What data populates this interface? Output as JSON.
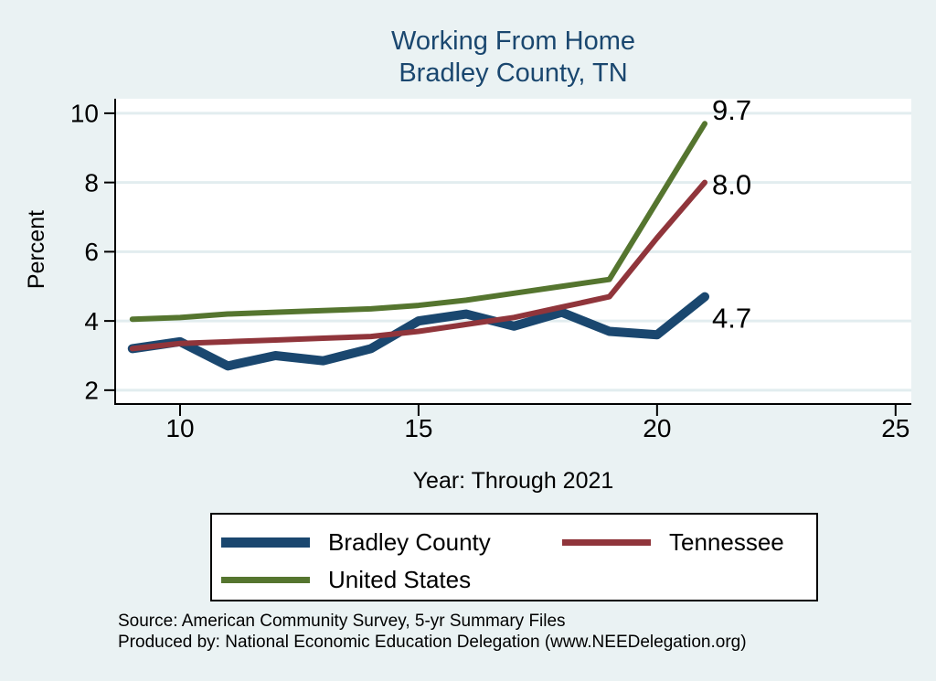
{
  "title": {
    "line1": "Working From Home",
    "line2": "Bradley County, TN"
  },
  "y_axis": {
    "label": "Percent"
  },
  "x_axis": {
    "label": "Year: Through 2021"
  },
  "source": {
    "line1": "Source: American Community Survey, 5-yr Summary Files",
    "line2": "Produced by: National Economic Education Delegation (www.NEEDelegation.org)"
  },
  "colors": {
    "background": "#eaf2f3",
    "plot_background": "#ffffff",
    "gridline": "#e2edef",
    "axis": "#000000",
    "title_text": "#1a476f",
    "tick_text": "#000000",
    "end_label_text": "#000000"
  },
  "chart_data": {
    "type": "line",
    "title": "Working From Home",
    "subtitle": "Bradley County, TN",
    "xlabel": "Year: Through 2021",
    "ylabel": "Percent",
    "x_ticks": [
      10,
      15,
      20,
      25
    ],
    "y_ticks": [
      2,
      4,
      6,
      8,
      10
    ],
    "xlim": [
      8.64,
      25.33
    ],
    "ylim": [
      1.6,
      10.42
    ],
    "grid": "horizontal",
    "legend_position": "bottom",
    "x": [
      9,
      10,
      11,
      12,
      13,
      14,
      15,
      16,
      17,
      18,
      19,
      20,
      21
    ],
    "series": [
      {
        "name": "Bradley County",
        "color": "#1a476f",
        "end_label": "4.7",
        "values": [
          3.2,
          3.4,
          2.7,
          3.0,
          2.85,
          3.2,
          4.0,
          4.2,
          3.85,
          4.25,
          3.7,
          3.6,
          4.7
        ]
      },
      {
        "name": "Tennessee",
        "color": "#90353b",
        "end_label": "8.0",
        "values": [
          3.2,
          3.35,
          3.4,
          3.45,
          3.5,
          3.55,
          3.7,
          3.9,
          4.1,
          4.4,
          4.7,
          6.4,
          8.0
        ]
      },
      {
        "name": "United States",
        "color": "#55752f",
        "end_label": "9.7",
        "values": [
          4.05,
          4.1,
          4.2,
          4.25,
          4.3,
          4.35,
          4.45,
          4.6,
          4.8,
          5.0,
          5.2,
          7.45,
          9.7
        ]
      }
    ]
  }
}
